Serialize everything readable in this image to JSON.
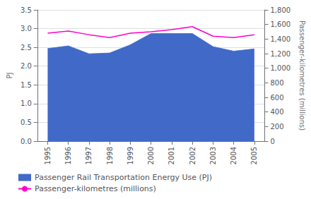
{
  "chart_data": {
    "type": "line",
    "categories": [
      "1995",
      "1996",
      "1997",
      "1998",
      "1999",
      "2000",
      "2001",
      "2002",
      "2003",
      "2004",
      "2005"
    ],
    "series": [
      {
        "name": "Passenger Rail Transportation Energy Use (PJ)",
        "type": "area",
        "color": "#4169C8",
        "values": [
          2.47,
          2.54,
          2.33,
          2.35,
          2.57,
          2.87,
          2.87,
          2.87,
          2.52,
          2.4,
          2.46
        ]
      },
      {
        "name": "Passenger-kilometres (millions)",
        "type": "line",
        "color": "#FF00CC",
        "axis": "y2",
        "values": [
          1480,
          1510,
          1460,
          1420,
          1480,
          1500,
          1530,
          1570,
          1440,
          1420,
          1460
        ]
      }
    ],
    "ylabel": "PJ",
    "y2label": "Passenger-kilometres (millions)",
    "ylim": [
      0,
      3.5
    ],
    "yticks": [
      {
        "value": 0,
        "label": "0.0"
      },
      0.5,
      {
        "value": 1,
        "label": "1.0"
      },
      1.5,
      {
        "value": 2,
        "label": "2.0"
      },
      2.5,
      {
        "value": 3,
        "label": "3.0"
      },
      3.5
    ],
    "y2lim": [
      0,
      1800
    ],
    "y2ticks": [
      0,
      200,
      400,
      600,
      800,
      {
        "value": 1000,
        "label": "1,000"
      },
      {
        "value": 1200,
        "label": "1,200"
      },
      {
        "value": 1400,
        "label": "1,400"
      },
      {
        "value": 1600,
        "label": "1,600"
      },
      {
        "value": 1800,
        "label": "1,800"
      }
    ],
    "grid": true,
    "legend": "lower left"
  }
}
